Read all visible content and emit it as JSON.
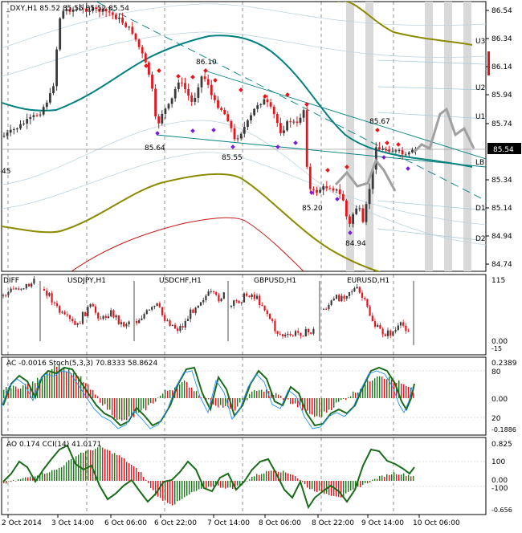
{
  "main": {
    "header": "_DXY,H1  85.52 85.55 85.52 85.54",
    "price_ticks": [
      "86.54",
      "86.34",
      "86.14",
      "85.94",
      "85.74",
      "85.54",
      "85.34",
      "85.14",
      "84.94",
      "84.74"
    ],
    "current_price": "85.54",
    "level_labels": [
      "U3",
      "U2",
      "U1",
      "LB",
      "D1",
      "D2"
    ],
    "annotations": [
      "86.10",
      "85.64",
      "85.55",
      "85.20",
      "85.67",
      "84.94"
    ],
    "left_stub": "45"
  },
  "basket": {
    "labels": [
      "DIFF",
      "USDJPY,H1",
      "USDCHF,H1",
      "GBPUSD,H1",
      "EURUSD,H1"
    ],
    "ticks": [
      "115",
      "0.00",
      "-15"
    ]
  },
  "ac": {
    "header": "AC -0.0016  Stoch(5,3,3) 70.8333 58.8624",
    "ticks": [
      "0.2389",
      "80",
      "0.00",
      "20",
      "-0.1886"
    ]
  },
  "ao": {
    "header": "AO 0.174  CCI(14) 41.0171",
    "ticks": [
      "0.825",
      "100",
      "0.00",
      "-100",
      "-0.656"
    ]
  },
  "time_labels": [
    "2 Oct 2014",
    "3 Oct 14:00",
    "6 Oct 06:00",
    "6 Oct 22:00",
    "7 Oct 14:00",
    "8 Oct 06:00",
    "8 Oct 22:00",
    "9 Oct 14:00",
    "10 Oct 06:00"
  ],
  "colors": {
    "bull": "#3a3a3a",
    "bear": "#e8141c",
    "teal": "#00807f",
    "olive": "#8b8b00",
    "red_ma": "#c81414",
    "purple": "#7a1fd6",
    "green_ind": "#1a6b1a",
    "blue_ind": "#1e90ff",
    "zone": "#d9d9d9"
  }
}
